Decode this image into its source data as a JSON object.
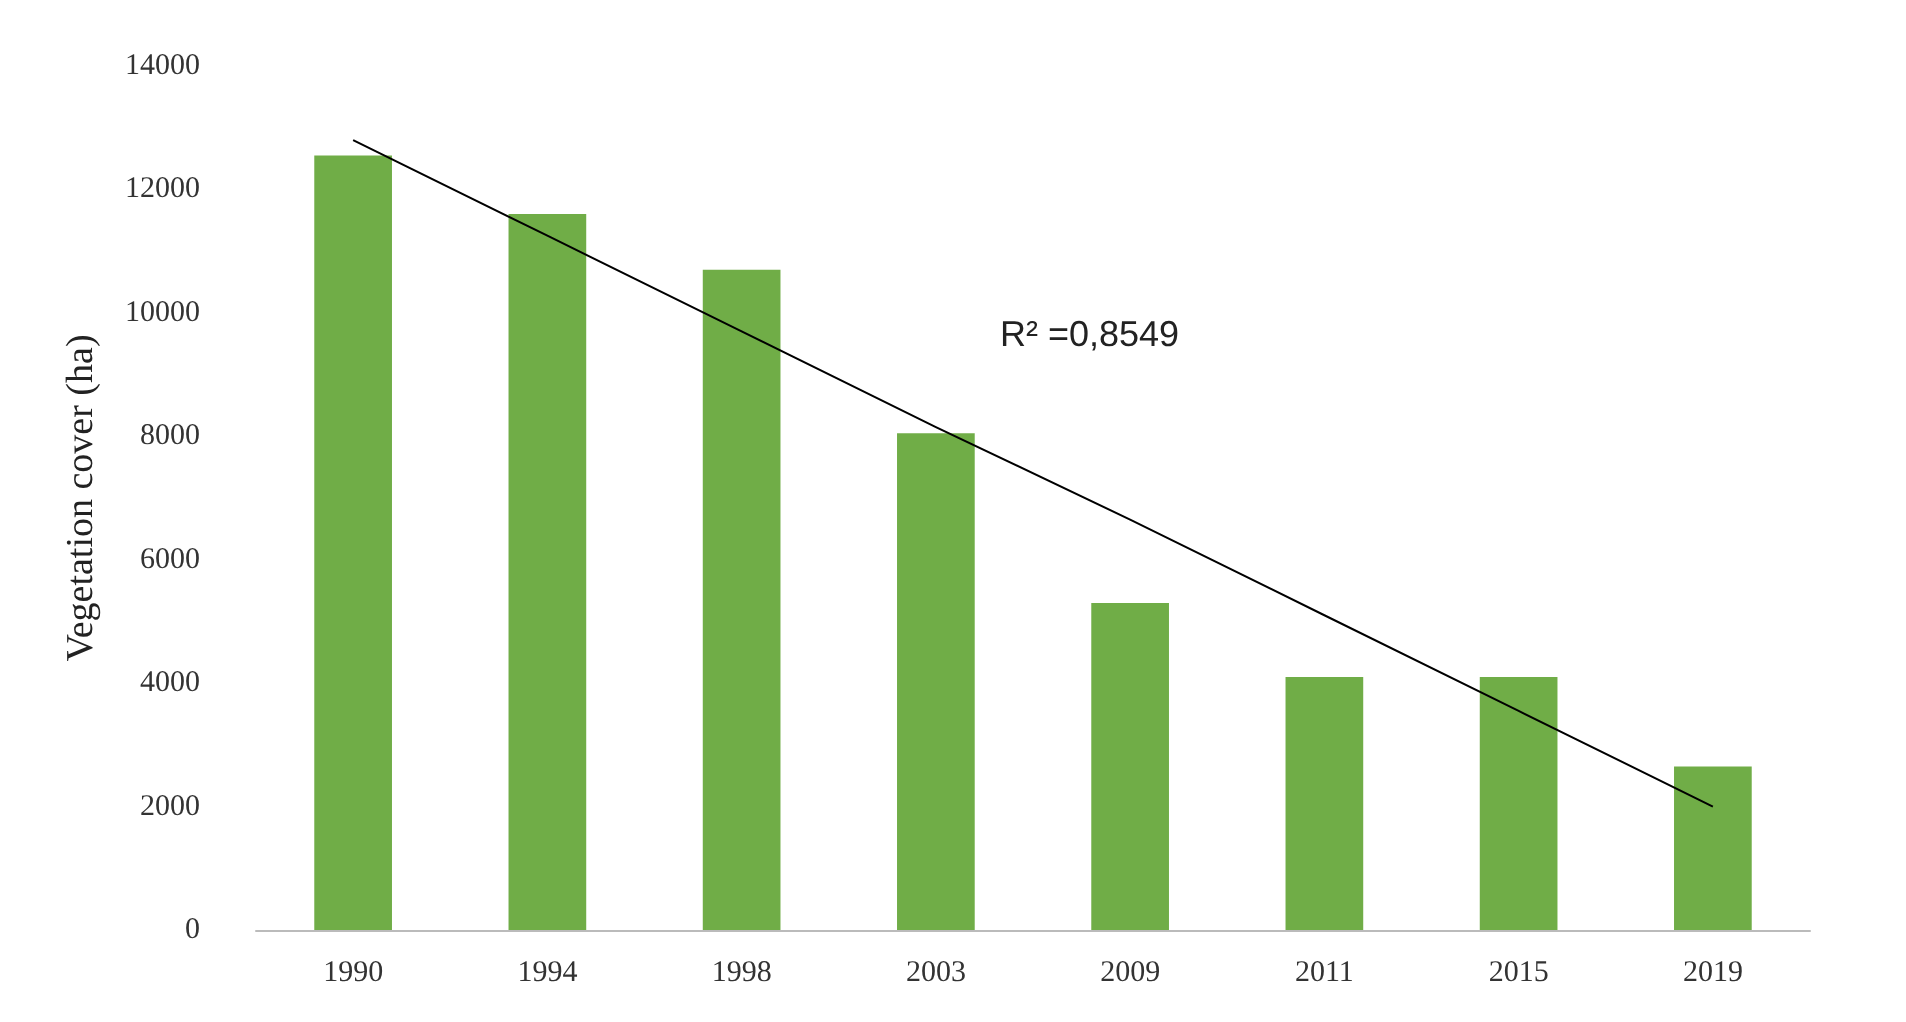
{
  "chart_data": {
    "type": "bar",
    "ylabel": "Vegetation cover (ha)",
    "categories": [
      "1990",
      "1994",
      "1998",
      "2003",
      "2009",
      "2011",
      "2015",
      "2019"
    ],
    "series": [
      {
        "color": "#70ad47",
        "values": [
          12550,
          11600,
          10700,
          8050,
          5300,
          4100,
          4100,
          2650
        ]
      },
      {
        "type": "line",
        "color": "#000000",
        "values": [
          12800,
          11250,
          9700,
          8150,
          6650,
          5100,
          3550,
          2000
        ],
        "marker": "none"
      }
    ],
    "ylim": [
      0,
      14000
    ],
    "yticks": [
      0,
      2000,
      4000,
      6000,
      8000,
      10000,
      12000,
      14000
    ],
    "grid": false,
    "annotations": [
      "R² =0,8549"
    ]
  }
}
